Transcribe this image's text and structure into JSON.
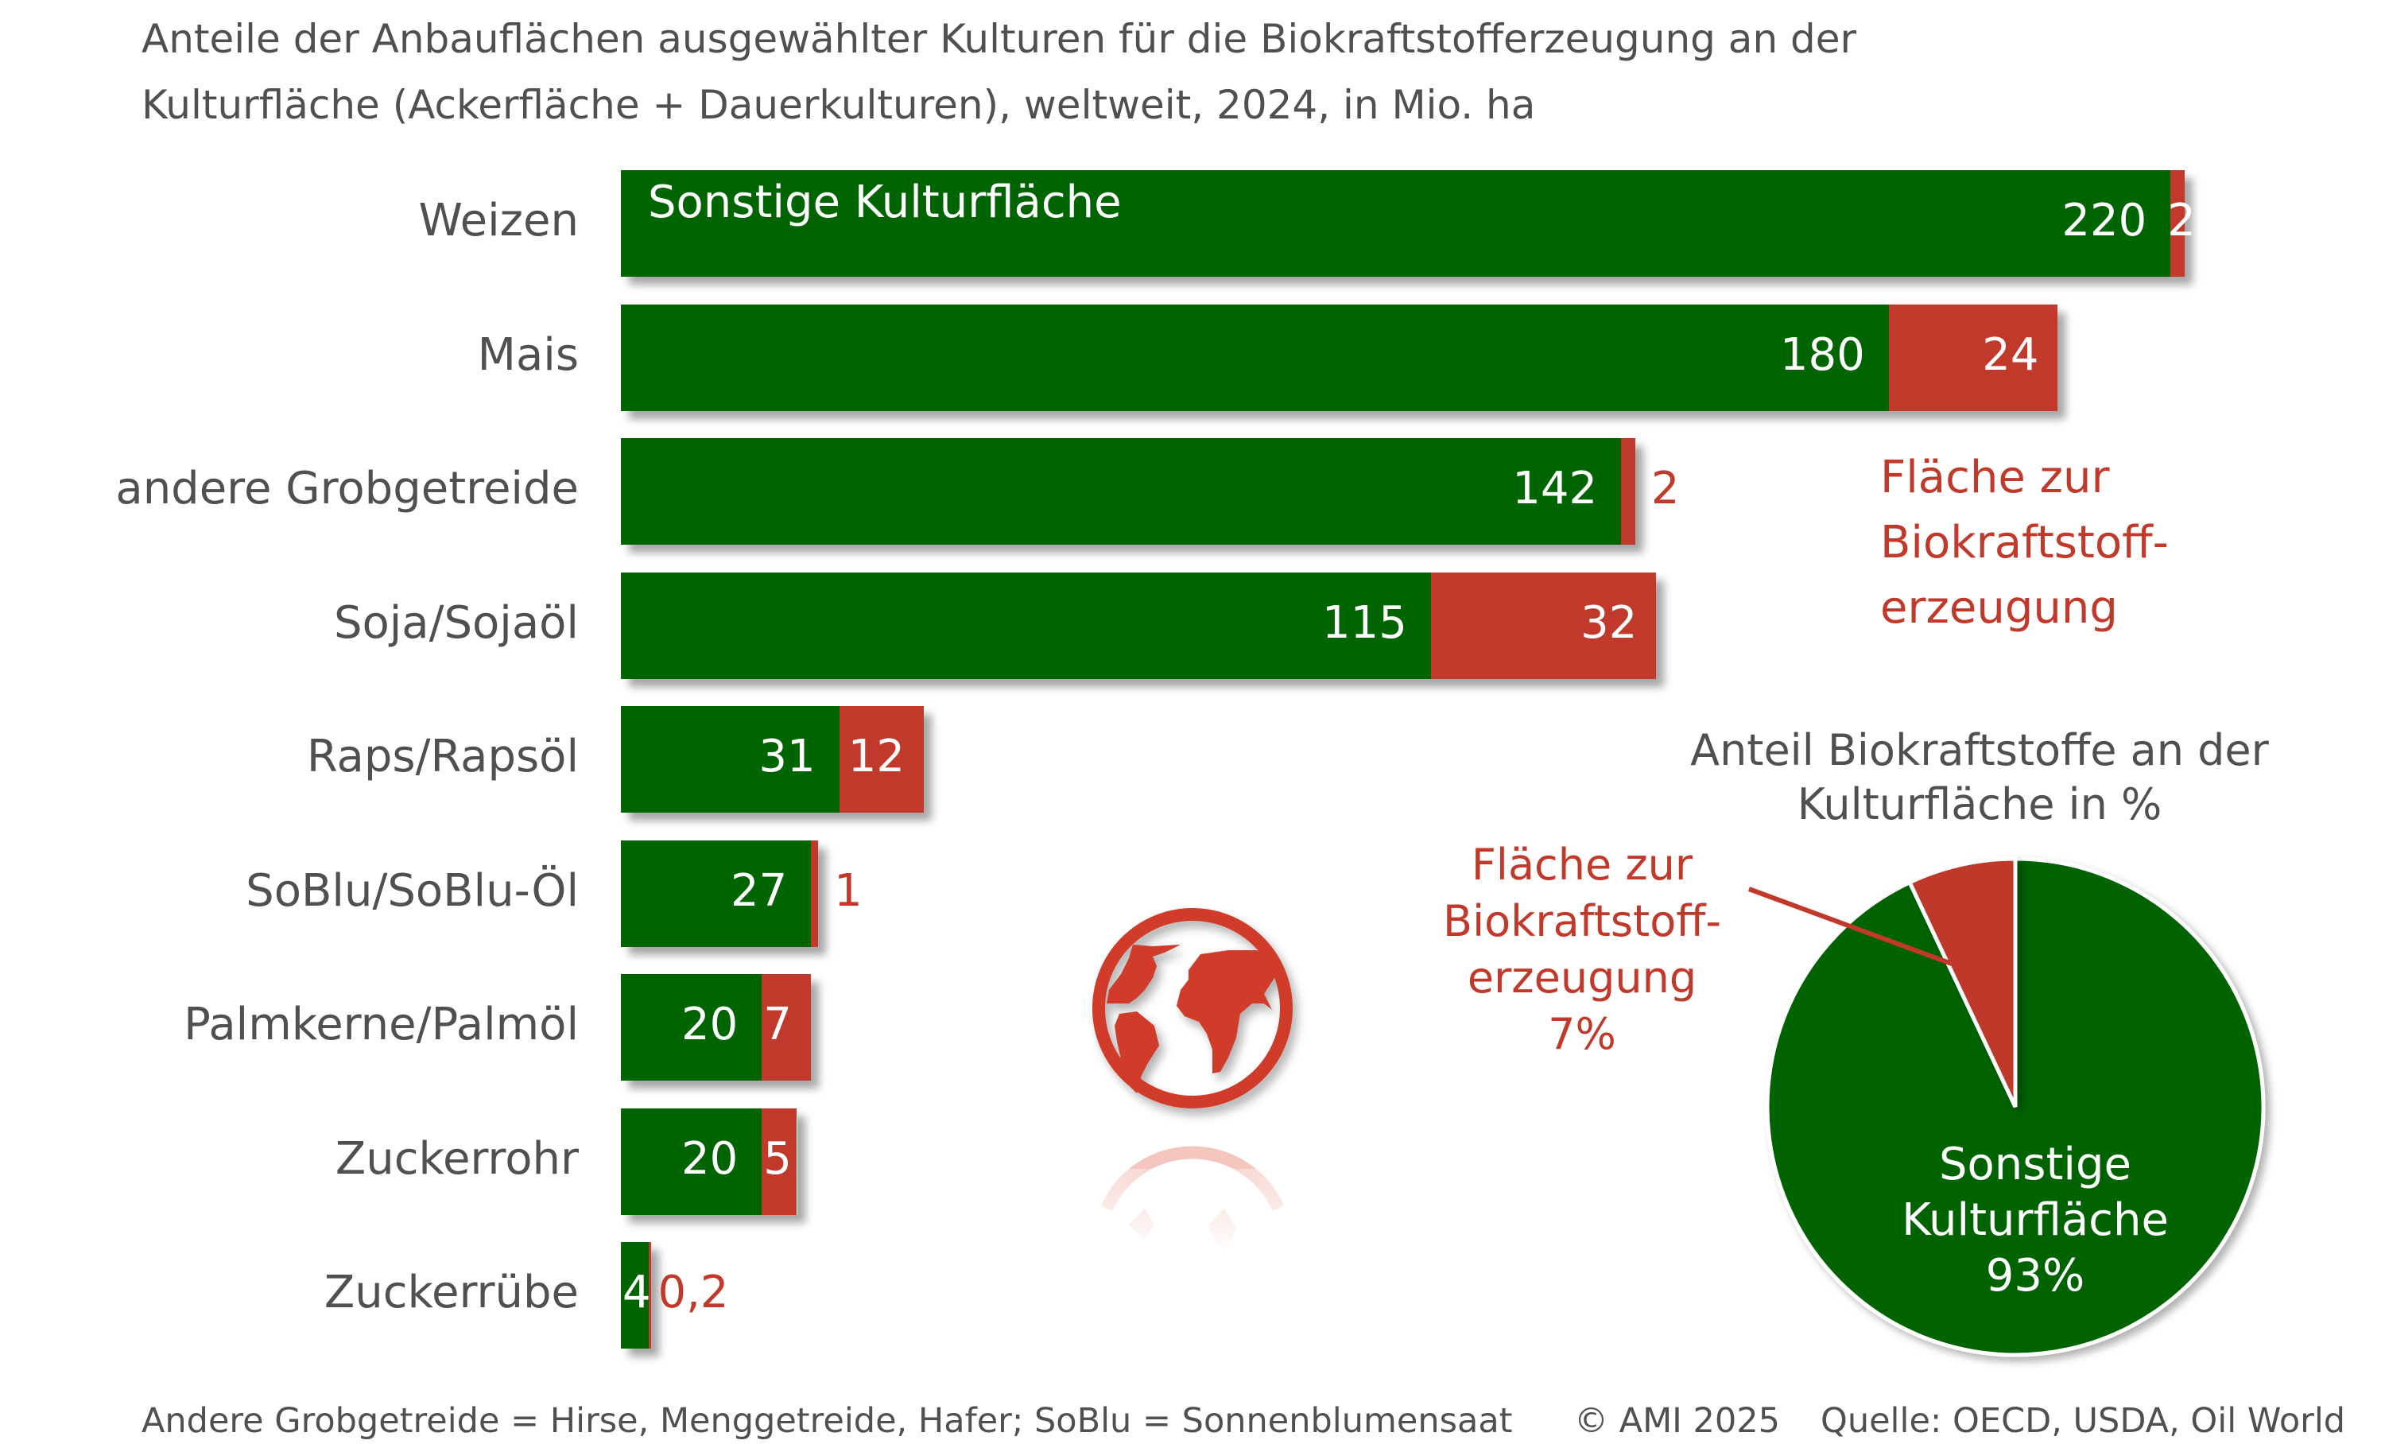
{
  "chart_data": [
    {
      "type": "bar",
      "orientation": "horizontal",
      "stacked": true,
      "title": "Anteile der Anbauflächen ausgewählter Kulturen für die Biokraftstofferzeugung an der Kulturfläche (Ackerfläche + Dauerkulturen), weltweit, 2024, in Mio. ha",
      "title_lines": [
        "Anteile der Anbauflächen ausgewählter Kulturen für die Biokraftstofferzeugung an der",
        "Kulturfläche (Ackerfläche + Dauerkulturen), weltweit, 2024, in Mio. ha"
      ],
      "categories": [
        "Weizen",
        "Mais",
        "andere Grobgetreide",
        "Soja/Sojaöl",
        "Raps/Rapsöl",
        "SoBlu/SoBlu-Öl",
        "Palmkerne/Palmöl",
        "Zuckerrohr",
        "Zuckerrübe"
      ],
      "series": [
        {
          "name": "Sonstige Kulturfläche",
          "color": "#006400",
          "values": [
            220,
            180,
            142,
            115,
            31,
            27,
            20,
            20,
            4
          ],
          "labels": [
            "220",
            "180",
            "142",
            "115",
            "31",
            "27",
            "20",
            "20",
            "4"
          ]
        },
        {
          "name": "Fläche zur Biokraftstofferzeugung",
          "color": "#c0392b",
          "values": [
            2,
            24,
            2,
            32,
            12,
            1,
            7,
            5,
            0.2
          ],
          "labels": [
            "2",
            "24",
            "2",
            "32",
            "12",
            "1",
            "7",
            "5",
            "0,2"
          ]
        }
      ],
      "legend": {
        "in_bar_label": "Sonstige Kulturfläche",
        "red_note_lines": [
          "Fläche zur",
          "Biokraftstoff-",
          "erzeugung"
        ]
      },
      "xlabel": "",
      "ylabel": "",
      "unit": "Mio. ha",
      "xlim": [
        0,
        222
      ],
      "grid": false
    },
    {
      "type": "pie",
      "title_lines": [
        "Anteil Biokraftstoffe an der",
        "Kulturfläche in %"
      ],
      "slices": [
        {
          "name": "Fläche zur Biokraftstofferzeugung",
          "value": 7,
          "color": "#c0392b",
          "label_lines": [
            "Fläche zur",
            "Biokraftstoff-",
            "erzeugung",
            "7%"
          ]
        },
        {
          "name": "Sonstige Kulturfläche",
          "value": 93,
          "color": "#006400",
          "label_lines": [
            "Sonstige",
            "Kulturfläche",
            "93%"
          ]
        }
      ]
    }
  ],
  "footer": {
    "note": "Andere Grobgetreide = Hirse, Menggetreide, Hafer; SoBlu = Sonnenblumensaat",
    "copyright": "© AMI 2025",
    "source": "Quelle: OECD, USDA, Oil World"
  },
  "icons": {
    "globe": "globe-icon"
  },
  "colors": {
    "green": "#006400",
    "red": "#c0392b",
    "text": "#505050"
  }
}
